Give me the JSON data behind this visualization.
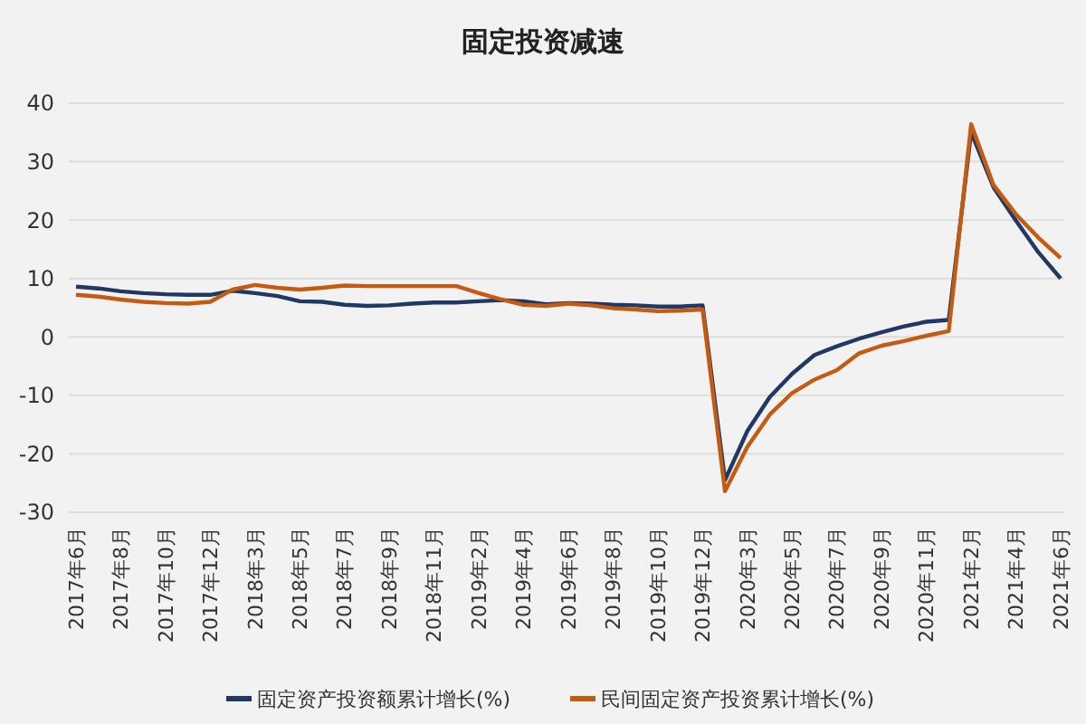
{
  "chart_data": {
    "type": "line",
    "title": "固定投资减速",
    "categories": [
      "2017年6月",
      null,
      "2017年8月",
      null,
      "2017年10月",
      null,
      "2017年12月",
      null,
      "2018年3月",
      null,
      "2018年5月",
      null,
      "2018年7月",
      null,
      "2018年9月",
      null,
      "2018年11月",
      null,
      "2019年2月",
      null,
      "2019年4月",
      null,
      "2019年6月",
      null,
      "2019年8月",
      null,
      "2019年10月",
      null,
      "2019年12月",
      null,
      "2020年3月",
      null,
      "2020年5月",
      null,
      "2020年7月",
      null,
      "2020年9月",
      null,
      "2020年11月",
      null,
      "2021年2月",
      null,
      "2021年4月",
      null,
      "2021年6月"
    ],
    "series": [
      {
        "name": "固定资产投资额累计增长(%)",
        "color": "#203864",
        "values": [
          8.6,
          8.3,
          7.8,
          7.5,
          7.3,
          7.2,
          7.2,
          7.9,
          7.5,
          7.0,
          6.1,
          6.0,
          5.5,
          5.3,
          5.4,
          5.7,
          5.9,
          5.9,
          6.1,
          6.3,
          6.1,
          5.6,
          5.8,
          5.7,
          5.5,
          5.4,
          5.2,
          5.2,
          5.4,
          -24.5,
          -16.1,
          -10.3,
          -6.3,
          -3.1,
          -1.6,
          -0.3,
          0.8,
          1.8,
          2.6,
          2.9,
          35.0,
          25.6,
          19.9,
          14.5,
          10
        ]
      },
      {
        "name": "民间固定资产投资累计增长(%)",
        "color": "#c55a11",
        "values": [
          7.2,
          6.9,
          6.4,
          6.0,
          5.8,
          5.7,
          6.0,
          8.1,
          8.9,
          8.4,
          8.1,
          8.4,
          8.8,
          8.7,
          8.7,
          8.7,
          8.7,
          8.7,
          7.5,
          6.4,
          5.5,
          5.3,
          5.7,
          5.4,
          4.9,
          4.7,
          4.4,
          4.5,
          4.7,
          -26.4,
          -18.8,
          -13.3,
          -9.6,
          -7.3,
          -5.7,
          -2.8,
          -1.5,
          -0.7,
          0.2,
          1.0,
          36.4,
          26.0,
          21.0,
          17.0,
          13.5
        ]
      }
    ],
    "ylim": [
      -30,
      40
    ],
    "yticks": [
      -30,
      -20,
      -10,
      0,
      10,
      20,
      30,
      40
    ],
    "grid": "y",
    "legend": "bottom",
    "marker": "none",
    "line_style": "solid"
  }
}
